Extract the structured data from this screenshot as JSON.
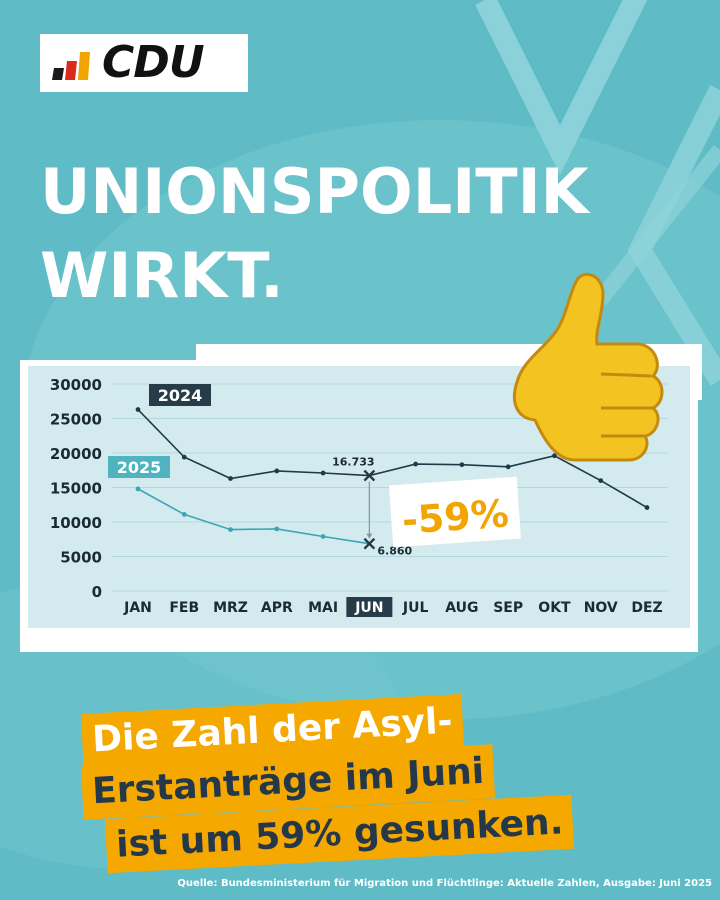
{
  "brand": {
    "name": "CDU",
    "colors": {
      "black": "#1a1a1a",
      "red": "#d92a1c",
      "gold": "#f2a400"
    }
  },
  "headline": [
    "UNIONSPOLITIK",
    "WIRKT."
  ],
  "emoji": {
    "name": "thumbs-up-icon",
    "glyph": "👍"
  },
  "chart_data": {
    "type": "line",
    "categories": [
      "JAN",
      "FEB",
      "MRZ",
      "APR",
      "MAI",
      "JUN",
      "JUL",
      "AUG",
      "SEP",
      "OKT",
      "NOV",
      "DEZ"
    ],
    "highlight_category": "JUN",
    "ylim": [
      0,
      30000
    ],
    "yticks": [
      0,
      5000,
      10000,
      15000,
      20000,
      25000,
      30000
    ],
    "ytick_labels": [
      "0",
      "5000",
      "10000",
      "15000",
      "20000",
      "25000",
      "30000"
    ],
    "grid": true,
    "series": [
      {
        "name": "2024",
        "color": "#1f3a47",
        "label_bg": "#263c48",
        "values": [
          26300,
          19400,
          16300,
          17400,
          17100,
          16733,
          18400,
          18300,
          18000,
          19600,
          16000,
          12100
        ]
      },
      {
        "name": "2025",
        "color": "#3aa6b4",
        "label_bg": "#4fb4c0",
        "values": [
          14800,
          11100,
          8900,
          9000,
          7900,
          6860,
          null,
          null,
          null,
          null,
          null,
          null
        ]
      }
    ],
    "annotations": {
      "jun_2024": "16.733",
      "jun_2025": "6.860",
      "change": "-59%"
    }
  },
  "caption": {
    "lines": [
      "Die Zahl der Asyl-",
      "Erstanträge im Juni",
      "ist um 59% gesunken."
    ],
    "bg": "#f5a800",
    "colors": [
      "#ffffff",
      "#24384a",
      "#24384a"
    ]
  },
  "source": "Quelle: Bundesministerium für Migration und Flüchtlinge: Aktuelle Zahlen, Ausgabe: Juni 2025"
}
